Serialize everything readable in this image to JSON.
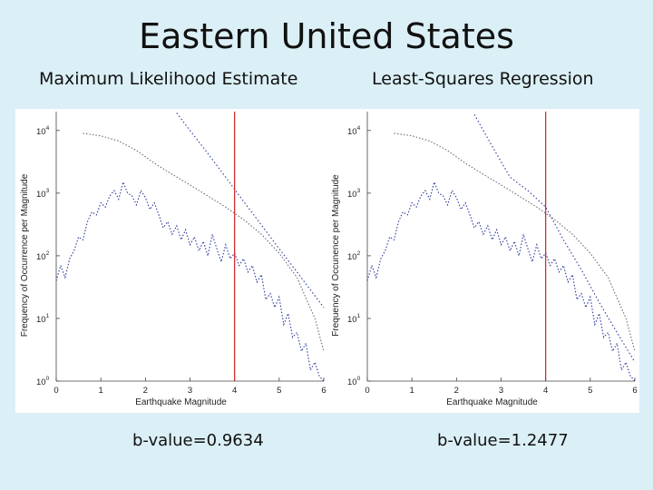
{
  "slide": {
    "title": "Eastern United States",
    "left_subtitle": "Maximum Likelihood Estimate",
    "right_subtitle": "Least-Squares Regression",
    "left_bvalue": "b-value=0.9634",
    "right_bvalue": "b-value=1.2477"
  },
  "colors": {
    "marker": "#cc2222",
    "series": "#2b3a9c",
    "fit": "#6a6a7a"
  },
  "chart_data": [
    {
      "type": "line",
      "title": "Maximum Likelihood Estimate",
      "xlabel": "Earthquake Magnitude",
      "ylabel": "Frequency of Occurrence per Magnitude",
      "xlim": [
        0,
        6
      ],
      "ylim": [
        1,
        20000
      ],
      "yscale": "log",
      "xticks": [
        "0",
        "1",
        "2",
        "3",
        "4",
        "5",
        "6"
      ],
      "yticks": [
        {
          "base": "10",
          "exp": "0"
        },
        {
          "base": "10",
          "exp": "1"
        },
        {
          "base": "10",
          "exp": "2"
        },
        {
          "base": "10",
          "exp": "3"
        },
        {
          "base": "10",
          "exp": "4"
        }
      ],
      "magnitude_cutoff": 4,
      "grid": false,
      "series": [
        {
          "x": [
            0,
            0.1,
            0.2,
            0.3,
            0.4,
            0.5,
            0.6,
            0.7,
            0.8,
            0.9,
            1.0,
            1.1,
            1.2,
            1.3,
            1.4,
            1.5,
            1.6,
            1.7,
            1.8,
            1.9,
            2.0,
            2.1,
            2.2,
            2.3,
            2.4,
            2.5,
            2.6,
            2.7,
            2.8,
            2.9,
            3.0,
            3.1,
            3.2,
            3.3,
            3.4,
            3.5,
            3.6,
            3.7,
            3.8,
            3.9,
            4.0,
            4.1,
            4.2,
            4.3,
            4.4,
            4.5,
            4.6,
            4.7,
            4.8,
            4.9,
            5.0,
            5.1,
            5.2,
            5.3,
            5.4,
            5.5,
            5.6,
            5.7,
            5.8,
            5.9,
            6.0
          ],
          "values": [
            40,
            70,
            45,
            90,
            120,
            200,
            180,
            350,
            500,
            450,
            700,
            600,
            900,
            1100,
            800,
            1500,
            1000,
            900,
            650,
            1100,
            850,
            550,
            700,
            450,
            280,
            350,
            220,
            300,
            180,
            260,
            150,
            200,
            120,
            170,
            100,
            220,
            130,
            80,
            150,
            90,
            110,
            70,
            90,
            55,
            70,
            38,
            50,
            20,
            25,
            15,
            22,
            8,
            12,
            5,
            6,
            3,
            4,
            1.5,
            2,
            1.2,
            1
          ]
        },
        {
          "x": [
            0.6,
            1.0,
            1.4,
            1.8,
            2.2,
            2.6,
            3.0,
            3.4,
            3.8,
            4.2,
            4.6,
            5.0,
            5.4,
            5.8,
            6.0
          ],
          "values": [
            9000,
            8200,
            6800,
            4800,
            3000,
            2000,
            1350,
            900,
            600,
            380,
            220,
            110,
            45,
            10,
            3
          ]
        },
        {
          "x": [
            2.7,
            3.0,
            3.4,
            3.8,
            4.2,
            4.6,
            5.0,
            5.4,
            5.8,
            6.0
          ],
          "values": [
            19000,
            10000,
            4300,
            1800,
            740,
            310,
            130,
            55,
            23,
            15
          ]
        }
      ]
    },
    {
      "type": "line",
      "title": "Least-Squares Regression",
      "xlabel": "Earthquake Magnitude",
      "ylabel": "Frequency of Occunence per Magnitude",
      "xlim": [
        0,
        6
      ],
      "ylim": [
        1,
        20000
      ],
      "yscale": "log",
      "xticks": [
        "0",
        "1",
        "2",
        "3",
        "4",
        "5",
        "6"
      ],
      "yticks": [
        {
          "base": "10",
          "exp": "0"
        },
        {
          "base": "10",
          "exp": "1"
        },
        {
          "base": "10",
          "exp": "2"
        },
        {
          "base": "10",
          "exp": "3"
        },
        {
          "base": "10",
          "exp": "4"
        }
      ],
      "magnitude_cutoff": 4,
      "grid": false,
      "series": [
        {
          "x": [
            0,
            0.1,
            0.2,
            0.3,
            0.4,
            0.5,
            0.6,
            0.7,
            0.8,
            0.9,
            1.0,
            1.1,
            1.2,
            1.3,
            1.4,
            1.5,
            1.6,
            1.7,
            1.8,
            1.9,
            2.0,
            2.1,
            2.2,
            2.3,
            2.4,
            2.5,
            2.6,
            2.7,
            2.8,
            2.9,
            3.0,
            3.1,
            3.2,
            3.3,
            3.4,
            3.5,
            3.6,
            3.7,
            3.8,
            3.9,
            4.0,
            4.1,
            4.2,
            4.3,
            4.4,
            4.5,
            4.6,
            4.7,
            4.8,
            4.9,
            5.0,
            5.1,
            5.2,
            5.3,
            5.4,
            5.5,
            5.6,
            5.7,
            5.8,
            5.9,
            6.0
          ],
          "values": [
            40,
            70,
            45,
            90,
            120,
            200,
            180,
            350,
            500,
            450,
            700,
            600,
            900,
            1100,
            800,
            1500,
            1000,
            900,
            650,
            1100,
            850,
            550,
            700,
            450,
            280,
            350,
            220,
            300,
            180,
            260,
            150,
            200,
            120,
            170,
            100,
            220,
            130,
            80,
            150,
            90,
            110,
            70,
            90,
            55,
            70,
            38,
            50,
            20,
            25,
            15,
            22,
            8,
            12,
            5,
            6,
            3,
            4,
            1.5,
            2,
            1.2,
            1
          ]
        },
        {
          "x": [
            0.6,
            1.0,
            1.4,
            1.8,
            2.2,
            2.6,
            3.0,
            3.4,
            3.8,
            4.2,
            4.6,
            5.0,
            5.4,
            5.8,
            6.0
          ],
          "values": [
            9000,
            8200,
            6800,
            4800,
            3000,
            2000,
            1350,
            900,
            600,
            380,
            220,
            110,
            45,
            10,
            3
          ]
        },
        {
          "x": [
            2.4,
            2.8,
            3.2,
            3.6,
            4.0,
            4.4,
            4.8,
            5.2,
            5.6,
            6.0
          ],
          "values": [
            18000,
            5600,
            1800,
            1100,
            600,
            180,
            60,
            18,
            6,
            2
          ]
        }
      ]
    }
  ]
}
